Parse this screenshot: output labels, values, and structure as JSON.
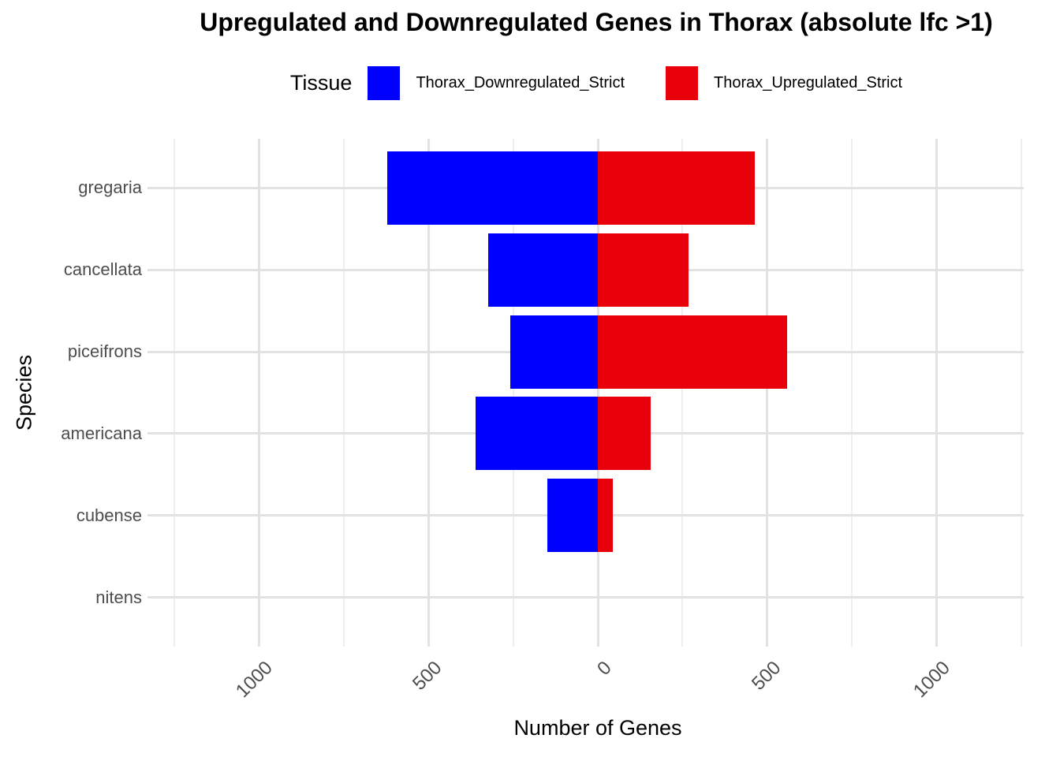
{
  "title": {
    "text": "Upregulated and Downregulated Genes in Thorax (absolute lfc >1)"
  },
  "legend": {
    "title": "Tissue",
    "items": [
      {
        "label": "Thorax_Downregulated_Strict",
        "color": "#0000FF"
      },
      {
        "label": "Thorax_Upregulated_Strict",
        "color": "#E8000B"
      }
    ]
  },
  "axes": {
    "x_label": "Number of Genes",
    "y_label": "Species"
  },
  "chart_data": {
    "type": "bar",
    "orientation": "horizontal_diverging",
    "title": "Upregulated and Downregulated Genes in Thorax (absolute lfc >1)",
    "xlabel": "Number of Genes",
    "ylabel": "Species",
    "categories": [
      "gregaria",
      "cancellata",
      "piceifrons",
      "americana",
      "cubense",
      "nitens"
    ],
    "series": [
      {
        "name": "Thorax_Downregulated_Strict",
        "color": "#0000FF",
        "direction": "left",
        "values": [
          622,
          324,
          258,
          360,
          148,
          0
        ]
      },
      {
        "name": "Thorax_Upregulated_Strict",
        "color": "#E8000B",
        "direction": "right",
        "values": [
          464,
          269,
          560,
          156,
          44,
          0
        ]
      }
    ],
    "x_axis": {
      "min": -1258,
      "max": 1258,
      "major_tick_values": [
        -1000,
        -500,
        0,
        500,
        1000
      ],
      "major_tick_labels": [
        "1000",
        "500",
        "0",
        "500",
        "1000"
      ],
      "minor_step": 250
    },
    "grid": true,
    "legend_position": "top",
    "bar_relative_height": 0.9
  },
  "colors": {
    "bar_blue": "#0000FF",
    "bar_red": "#E8000B",
    "grid_major": "#E2E2E2",
    "grid_minor": "#EEEEEE",
    "tick_text": "#4D4D4D",
    "title_text": "#000000",
    "background": "#FFFFFF"
  }
}
